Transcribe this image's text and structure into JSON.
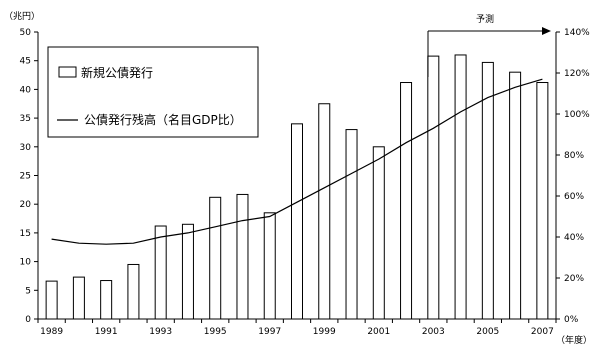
{
  "chart_data": {
    "type": "bar",
    "units": {
      "left": "（兆円）",
      "x": "（年度）"
    },
    "annotation": "予測",
    "x": [
      1989,
      1990,
      1991,
      1992,
      1993,
      1994,
      1995,
      1996,
      1997,
      1998,
      1999,
      2000,
      2001,
      2002,
      2003,
      2004,
      2005,
      2006,
      2007
    ],
    "x_tick_labels": [
      "1989",
      "1991",
      "1993",
      "1995",
      "1997",
      "1999",
      "2001",
      "2003",
      "2005",
      "2007"
    ],
    "left_axis": {
      "ylim": [
        0,
        50
      ],
      "ticks": [
        "0",
        "5",
        "10",
        "15",
        "20",
        "25",
        "30",
        "35",
        "40",
        "45",
        "50"
      ]
    },
    "right_axis": {
      "ylim": [
        0,
        140
      ],
      "ticks": [
        "0%",
        "20%",
        "40%",
        "60%",
        "80%",
        "100%",
        "120%",
        "140%"
      ]
    },
    "series": [
      {
        "name": "新規公債発行",
        "kind": "bar",
        "axis": "left",
        "values": [
          6.6,
          7.3,
          6.7,
          9.5,
          16.2,
          16.5,
          21.2,
          21.7,
          18.5,
          34.0,
          37.5,
          33.0,
          30.0,
          41.2,
          45.8,
          46.0,
          44.7,
          43.0,
          41.2
        ]
      },
      {
        "name": "公債発行残高（名目GDP比）",
        "kind": "line",
        "axis": "right",
        "values": [
          39,
          37,
          36.5,
          37,
          40,
          42,
          45,
          48,
          50,
          57,
          64,
          71,
          78,
          86,
          93,
          101,
          108,
          113,
          117
        ]
      }
    ],
    "forecast_from": 2003,
    "grid": false,
    "legend_position": "top-left"
  }
}
